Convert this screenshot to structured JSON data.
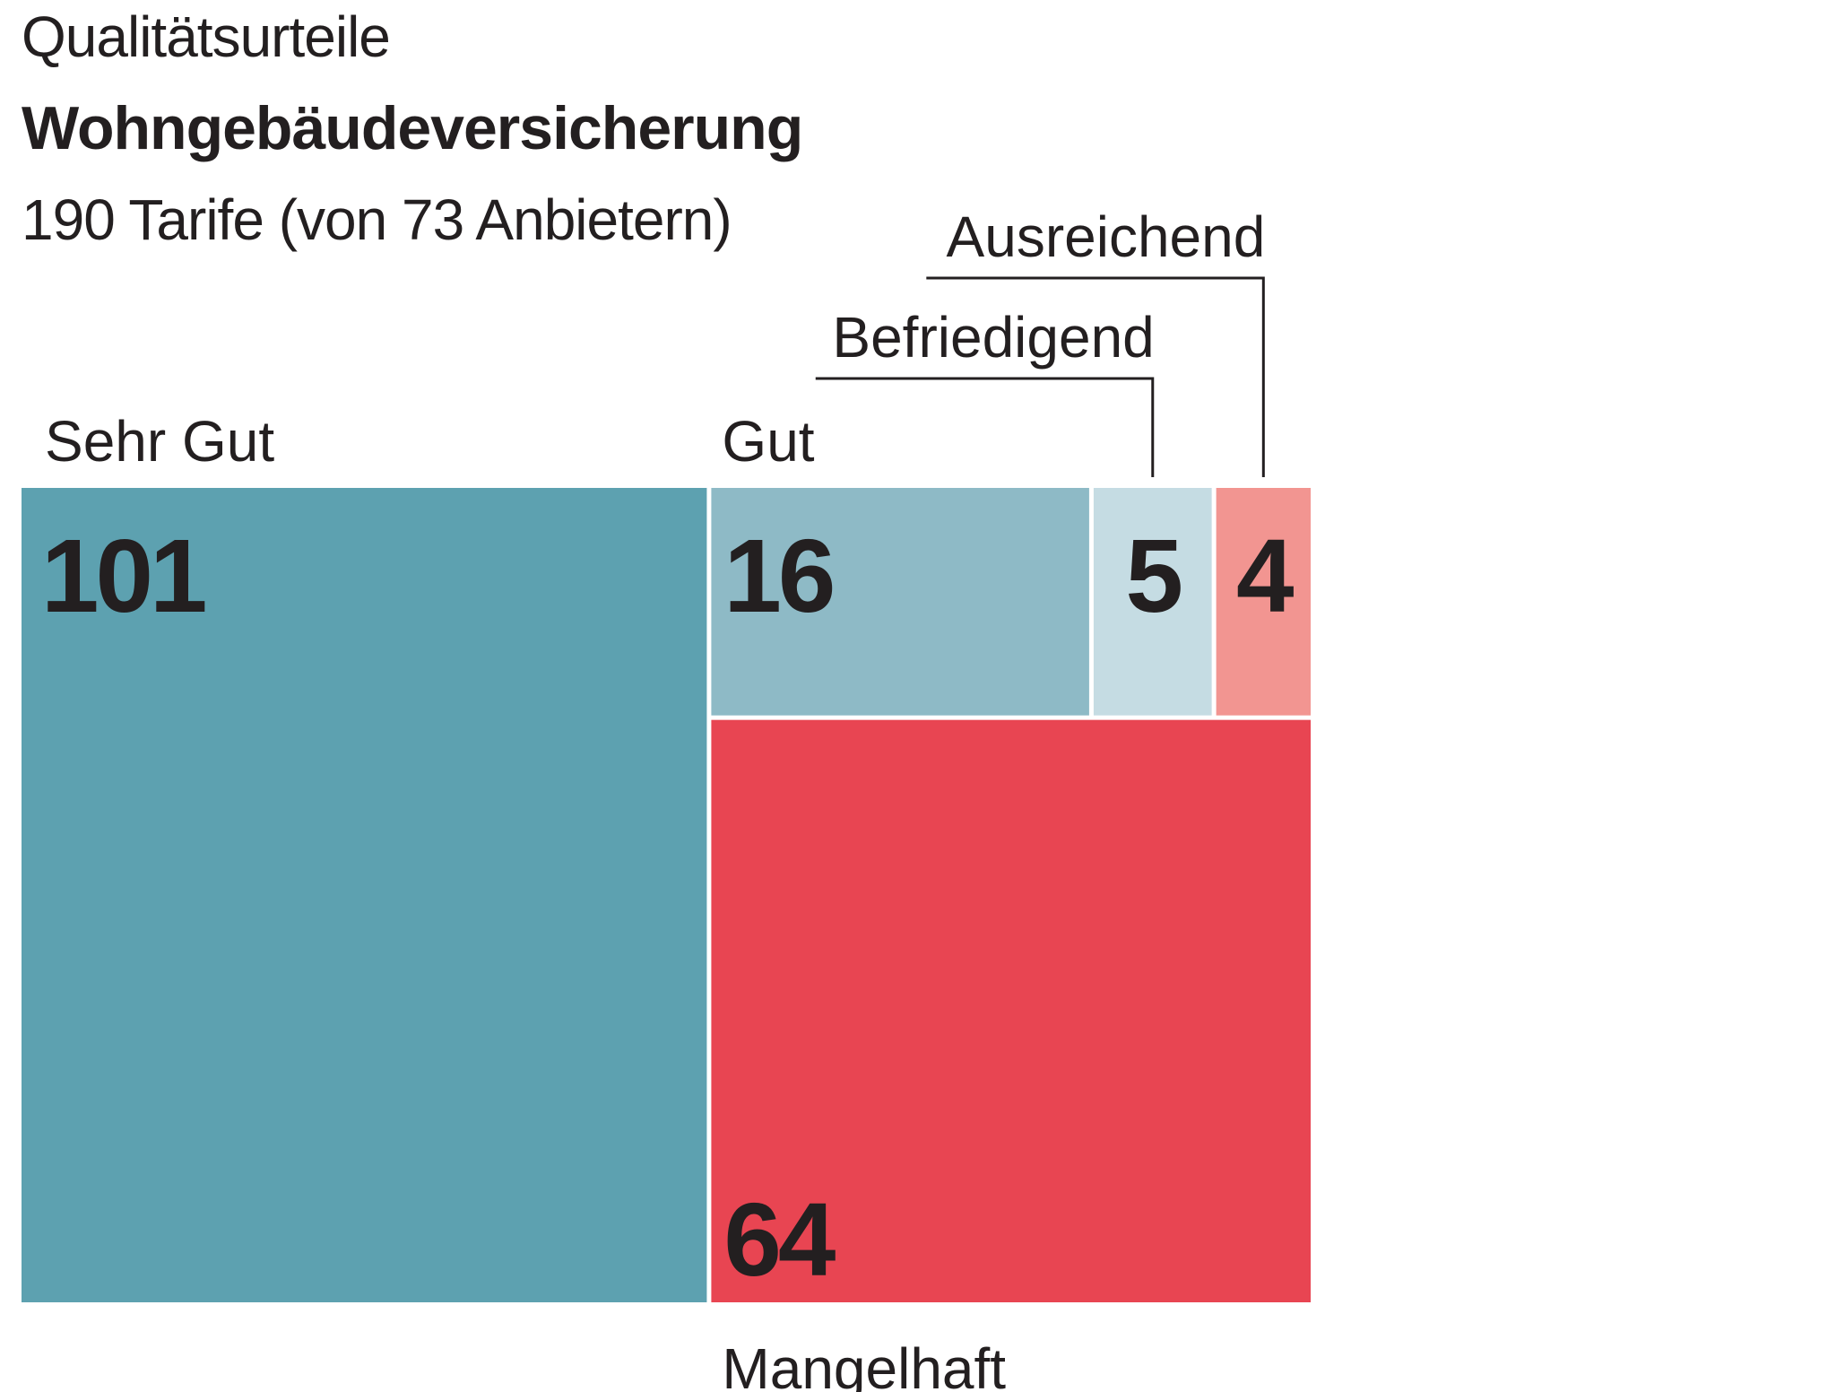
{
  "header": {
    "title": "Qualitätsurteile",
    "subtitle": "Wohngebäudeversicherung",
    "note": "190 Tarife (von 73 Anbietern)"
  },
  "chart_data": {
    "type": "treemap",
    "total": 190,
    "cells": [
      {
        "name": "Sehr Gut",
        "value": 101,
        "color": "#5da1b0"
      },
      {
        "name": "Gut",
        "value": 16,
        "color": "#8ebac6"
      },
      {
        "name": "Befriedigend",
        "value": 5,
        "color": "#c5dce3"
      },
      {
        "name": "Ausreichend",
        "value": 4,
        "color": "#f29591"
      },
      {
        "name": "Mangelhaft",
        "value": 64,
        "color": "#e84552"
      }
    ]
  }
}
